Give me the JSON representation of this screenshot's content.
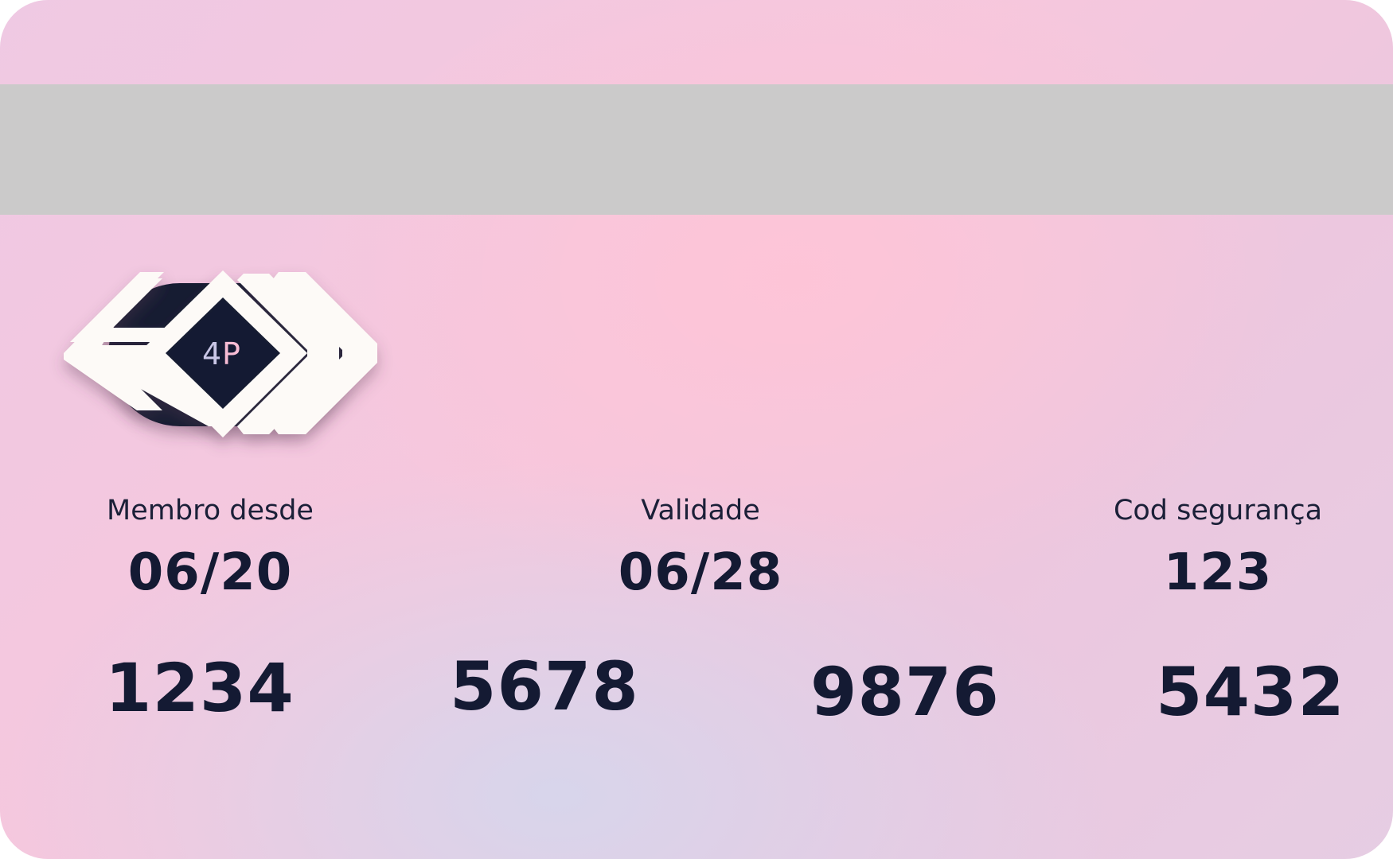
{
  "card": {
    "logo": {
      "name": "4p-logo",
      "text": "4P",
      "colors": {
        "dark": "#141a33",
        "white": "#fdfaf7",
        "four": "#c9c6e6",
        "p": "#f7bcd4"
      }
    },
    "fields": {
      "member_since": {
        "label": "Membro desde",
        "value": "06/20"
      },
      "validity": {
        "label": "Validade",
        "value": "06/28"
      },
      "security_code": {
        "label": "Cod segurança",
        "value": "123"
      }
    },
    "number_groups": [
      "1234",
      "5678",
      "9876",
      "5432"
    ],
    "colors": {
      "stripe": "#cbcaca",
      "text": "#141a33",
      "background_pink": "#f6c7dd",
      "background_lavender": "#d6d6ec"
    }
  }
}
